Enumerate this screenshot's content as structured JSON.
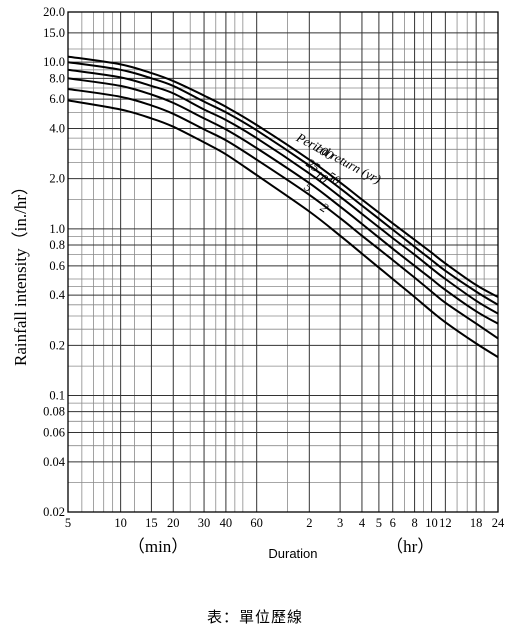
{
  "caption": "表：單位歷線",
  "chart_data": {
    "type": "line",
    "ylabel": "Rainfall intensity（in./hr）",
    "xlabel": "Duration",
    "x_unit_min_label": "（min）",
    "x_unit_hr_label": "（hr）",
    "x_scale": "log",
    "y_scale": "log",
    "xlim_min": [
      5,
      1440
    ],
    "ylim": [
      0.02,
      20
    ],
    "x_ticks": [
      {
        "min": 5,
        "label": "5"
      },
      {
        "min": 10,
        "label": "10"
      },
      {
        "min": 15,
        "label": "15"
      },
      {
        "min": 20,
        "label": "20"
      },
      {
        "min": 30,
        "label": "30"
      },
      {
        "min": 40,
        "label": "40"
      },
      {
        "min": 60,
        "label": "60"
      },
      {
        "min": 120,
        "label": "2"
      },
      {
        "min": 180,
        "label": "3"
      },
      {
        "min": 240,
        "label": "4"
      },
      {
        "min": 300,
        "label": "5"
      },
      {
        "min": 360,
        "label": "6"
      },
      {
        "min": 480,
        "label": "8"
      },
      {
        "min": 600,
        "label": "10"
      },
      {
        "min": 720,
        "label": "12"
      },
      {
        "min": 1080,
        "label": "18"
      },
      {
        "min": 1440,
        "label": "24"
      }
    ],
    "y_ticks": [
      {
        "v": 20,
        "label": "20.0"
      },
      {
        "v": 15,
        "label": "15.0"
      },
      {
        "v": 10,
        "label": "10.0"
      },
      {
        "v": 8,
        "label": "8.0"
      },
      {
        "v": 6,
        "label": "6.0"
      },
      {
        "v": 4,
        "label": "4.0"
      },
      {
        "v": 2,
        "label": "2.0"
      },
      {
        "v": 1,
        "label": "1.0"
      },
      {
        "v": 0.8,
        "label": "0.8"
      },
      {
        "v": 0.6,
        "label": "0.6"
      },
      {
        "v": 0.4,
        "label": "0.4"
      },
      {
        "v": 0.2,
        "label": "0.2"
      },
      {
        "v": 0.1,
        "label": "0.1"
      },
      {
        "v": 0.08,
        "label": "0.08"
      },
      {
        "v": 0.06,
        "label": "0.06"
      },
      {
        "v": 0.04,
        "label": "0.04"
      },
      {
        "v": 0.02,
        "label": "0.02"
      }
    ],
    "minor_y": [
      0.03,
      0.05,
      0.07,
      0.09,
      0.15,
      0.25,
      0.3,
      0.35,
      0.45,
      0.5,
      0.7,
      0.9,
      1.5,
      2.5,
      3,
      3.5,
      5,
      7,
      9,
      12
    ],
    "minor_x_min": [
      6,
      7,
      8,
      9,
      12,
      25,
      35,
      45,
      50,
      90,
      420,
      540,
      840,
      960,
      1200
    ],
    "annotation": "Period return (yr)",
    "x_min": [
      5,
      10,
      15,
      20,
      30,
      40,
      60,
      120,
      180,
      240,
      360,
      480,
      600,
      720,
      1080,
      1440
    ],
    "series": [
      {
        "name": "100",
        "values": [
          10.8,
          9.7,
          8.6,
          7.7,
          6.3,
          5.4,
          4.2,
          2.6,
          1.9,
          1.5,
          1.08,
          0.86,
          0.72,
          0.62,
          0.46,
          0.39
        ]
      },
      {
        "name": "50",
        "values": [
          10.0,
          9.0,
          8.0,
          7.2,
          5.8,
          5.0,
          3.9,
          2.4,
          1.75,
          1.38,
          0.99,
          0.78,
          0.65,
          0.56,
          0.42,
          0.35
        ]
      },
      {
        "name": "25",
        "values": [
          9.0,
          8.1,
          7.2,
          6.5,
          5.2,
          4.5,
          3.5,
          2.15,
          1.56,
          1.23,
          0.88,
          0.7,
          0.58,
          0.5,
          0.37,
          0.31
        ]
      },
      {
        "name": "10",
        "values": [
          8.0,
          7.2,
          6.4,
          5.7,
          4.6,
          3.95,
          3.05,
          1.88,
          1.36,
          1.07,
          0.76,
          0.6,
          0.5,
          0.43,
          0.32,
          0.27
        ]
      },
      {
        "name": "5",
        "values": [
          6.9,
          6.2,
          5.5,
          4.9,
          3.95,
          3.4,
          2.6,
          1.6,
          1.16,
          0.91,
          0.65,
          0.51,
          0.42,
          0.36,
          0.27,
          0.22
        ]
      },
      {
        "name": "2",
        "values": [
          5.9,
          5.2,
          4.6,
          4.1,
          3.3,
          2.8,
          2.1,
          1.27,
          0.91,
          0.71,
          0.5,
          0.39,
          0.32,
          0.275,
          0.205,
          0.17
        ]
      }
    ]
  }
}
